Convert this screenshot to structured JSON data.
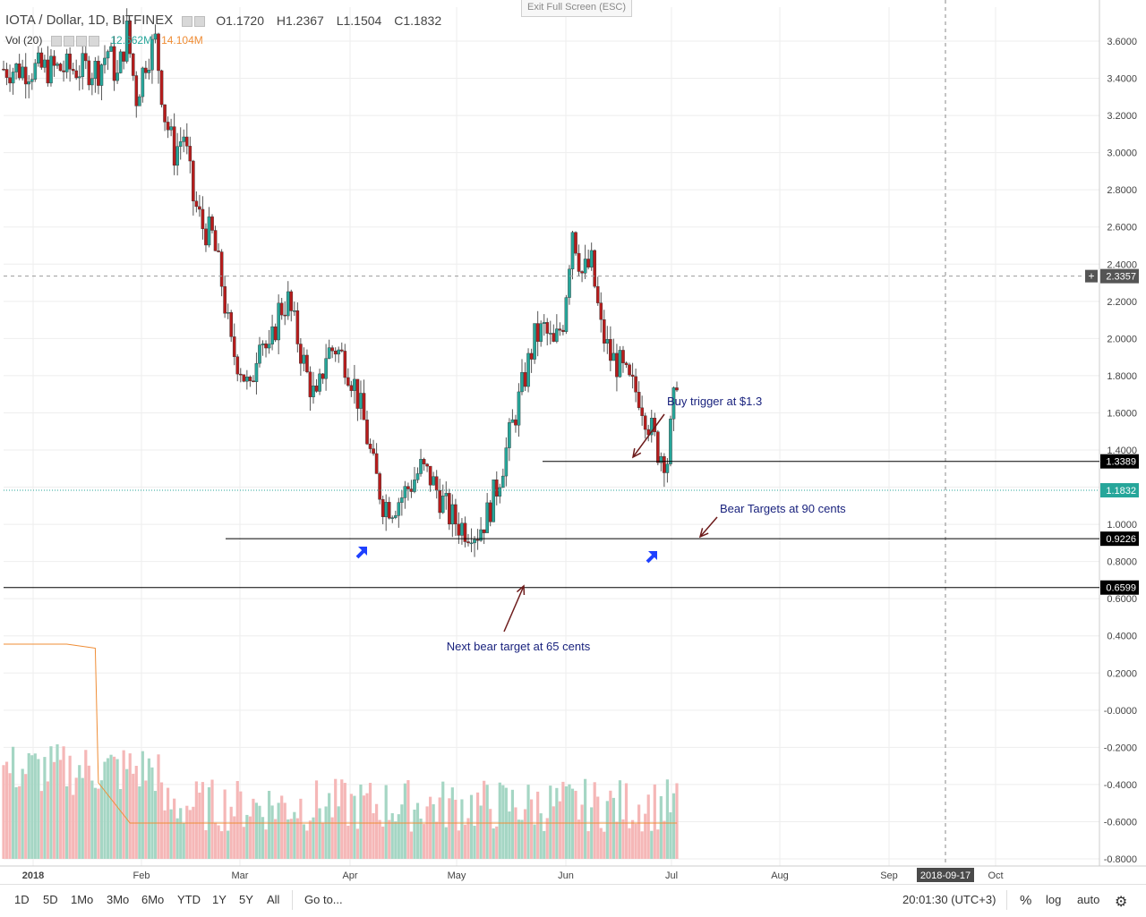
{
  "header": {
    "symbol_title": "IOTA / Dollar, 1D, BITFINEX",
    "ohlc": {
      "open": "O1.1720",
      "high": "H1.2367",
      "low": "L1.1504",
      "close": "C1.1832"
    },
    "volume_label": "Vol (20)",
    "volume_value": "12.662M",
    "volume_ma_value": "14.104M"
  },
  "exit_fullscreen": "Exit Full Screen (ESC)",
  "colors": {
    "up": "#26a69a",
    "down": "#b71c1c",
    "vol_up": "#a5d6c4",
    "vol_down": "#f5b7b7",
    "vol_ma": "#ef8d36",
    "annotation": "#0000ff",
    "arrow": "#6d1b1b"
  },
  "chart_data": {
    "type": "candlestick",
    "symbol": "IOTA / Dollar",
    "interval": "1D",
    "exchange": "BITFINEX",
    "x_axis": [
      "2018",
      "Feb",
      "Mar",
      "Apr",
      "May",
      "Jun",
      "Jul",
      "Aug",
      "Sep",
      "2018-09-17",
      "Oct"
    ],
    "y_axis_ticks": [
      "3.6000",
      "3.4000",
      "3.2000",
      "3.0000",
      "2.8000",
      "2.6000",
      "2.4000",
      "2.2000",
      "2.0000",
      "1.8000",
      "1.6000",
      "1.4000",
      "1.2000",
      "1.0000",
      "0.8000",
      "0.6000",
      "0.4000",
      "0.2000",
      "-0.0000",
      "-0.2000",
      "-0.4000",
      "-0.6000",
      "-0.8000"
    ],
    "ylim": [
      -0.85,
      3.75
    ],
    "price_lines": [
      {
        "value": 2.3357,
        "label": "2.3357",
        "style": "dashed"
      },
      {
        "value": 1.3389,
        "label": "1.3389",
        "style": "solid"
      },
      {
        "value": 1.1832,
        "label": "1.1832",
        "style": "current"
      },
      {
        "value": 0.9226,
        "label": "0.9226",
        "style": "solid"
      },
      {
        "value": 0.6599,
        "label": "0.6599",
        "style": "solid"
      }
    ],
    "annotations": [
      {
        "text": "Buy trigger at $1.3"
      },
      {
        "text": "Bear Targets at 90 cents"
      },
      {
        "text": "Next bear target at 65 cents"
      }
    ],
    "series_close": [
      [
        0,
        3.45
      ],
      [
        3,
        3.55
      ],
      [
        6,
        3.4
      ],
      [
        9,
        3.65
      ],
      [
        12,
        3.3
      ],
      [
        15,
        3.5
      ],
      [
        18,
        3.6
      ],
      [
        21,
        3.2
      ],
      [
        24,
        3.0
      ],
      [
        27,
        3.1
      ],
      [
        30,
        2.75
      ],
      [
        33,
        2.6
      ],
      [
        36,
        2.55
      ],
      [
        39,
        2.3
      ],
      [
        42,
        1.95
      ],
      [
        45,
        1.85
      ],
      [
        48,
        1.7
      ],
      [
        51,
        2.05
      ],
      [
        54,
        1.9
      ],
      [
        57,
        2.15
      ],
      [
        60,
        2.2
      ],
      [
        63,
        2.0
      ],
      [
        66,
        1.8
      ],
      [
        69,
        1.65
      ],
      [
        72,
        1.92
      ],
      [
        75,
        1.95
      ],
      [
        78,
        1.88
      ],
      [
        81,
        1.75
      ],
      [
        84,
        1.55
      ],
      [
        87,
        1.3
      ],
      [
        90,
        1.12
      ],
      [
        93,
        1.1
      ],
      [
        96,
        1.15
      ],
      [
        99,
        1.22
      ],
      [
        102,
        1.3
      ],
      [
        105,
        1.25
      ],
      [
        108,
        1.15
      ],
      [
        111,
        1.05
      ],
      [
        114,
        1.0
      ],
      [
        117,
        0.97
      ],
      [
        120,
        0.96
      ],
      [
        123,
        1.05
      ],
      [
        126,
        1.2
      ],
      [
        129,
        1.4
      ],
      [
        132,
        1.6
      ],
      [
        135,
        1.8
      ],
      [
        138,
        2.0
      ],
      [
        141,
        2.05
      ],
      [
        144,
        1.95
      ],
      [
        147,
        2.1
      ],
      [
        150,
        2.6
      ],
      [
        153,
        2.35
      ],
      [
        156,
        2.4
      ],
      [
        159,
        2.05
      ],
      [
        162,
        1.9
      ],
      [
        165,
        1.85
      ],
      [
        168,
        1.75
      ],
      [
        171,
        1.7
      ],
      [
        174,
        1.55
      ],
      [
        177,
        1.4
      ],
      [
        180,
        1.35
      ],
      [
        183,
        1.8
      ],
      [
        186,
        1.95
      ],
      [
        189,
        1.82
      ],
      [
        192,
        1.6
      ],
      [
        195,
        1.45
      ],
      [
        198,
        1.3
      ],
      [
        201,
        1.22
      ],
      [
        204,
        1.2
      ],
      [
        207,
        1.18
      ],
      [
        210,
        1.0
      ],
      [
        213,
        0.97
      ],
      [
        216,
        0.93
      ],
      [
        219,
        1.0
      ],
      [
        222,
        1.18
      ]
    ],
    "volume_ma": "20"
  },
  "bottom_axis": {
    "labels": [
      "2018",
      "Feb",
      "Mar",
      "Apr",
      "May",
      "Jun",
      "Jul",
      "Aug",
      "Sep",
      "2018-09-17",
      "Oct"
    ]
  },
  "toolbar": {
    "ranges": [
      "1D",
      "5D",
      "1Mo",
      "3Mo",
      "6Mo",
      "YTD",
      "1Y",
      "5Y",
      "All"
    ],
    "goto": "Go to...",
    "clock": "20:01:30 (UTC+3)",
    "percent": "%",
    "log": "log",
    "auto": "auto"
  }
}
